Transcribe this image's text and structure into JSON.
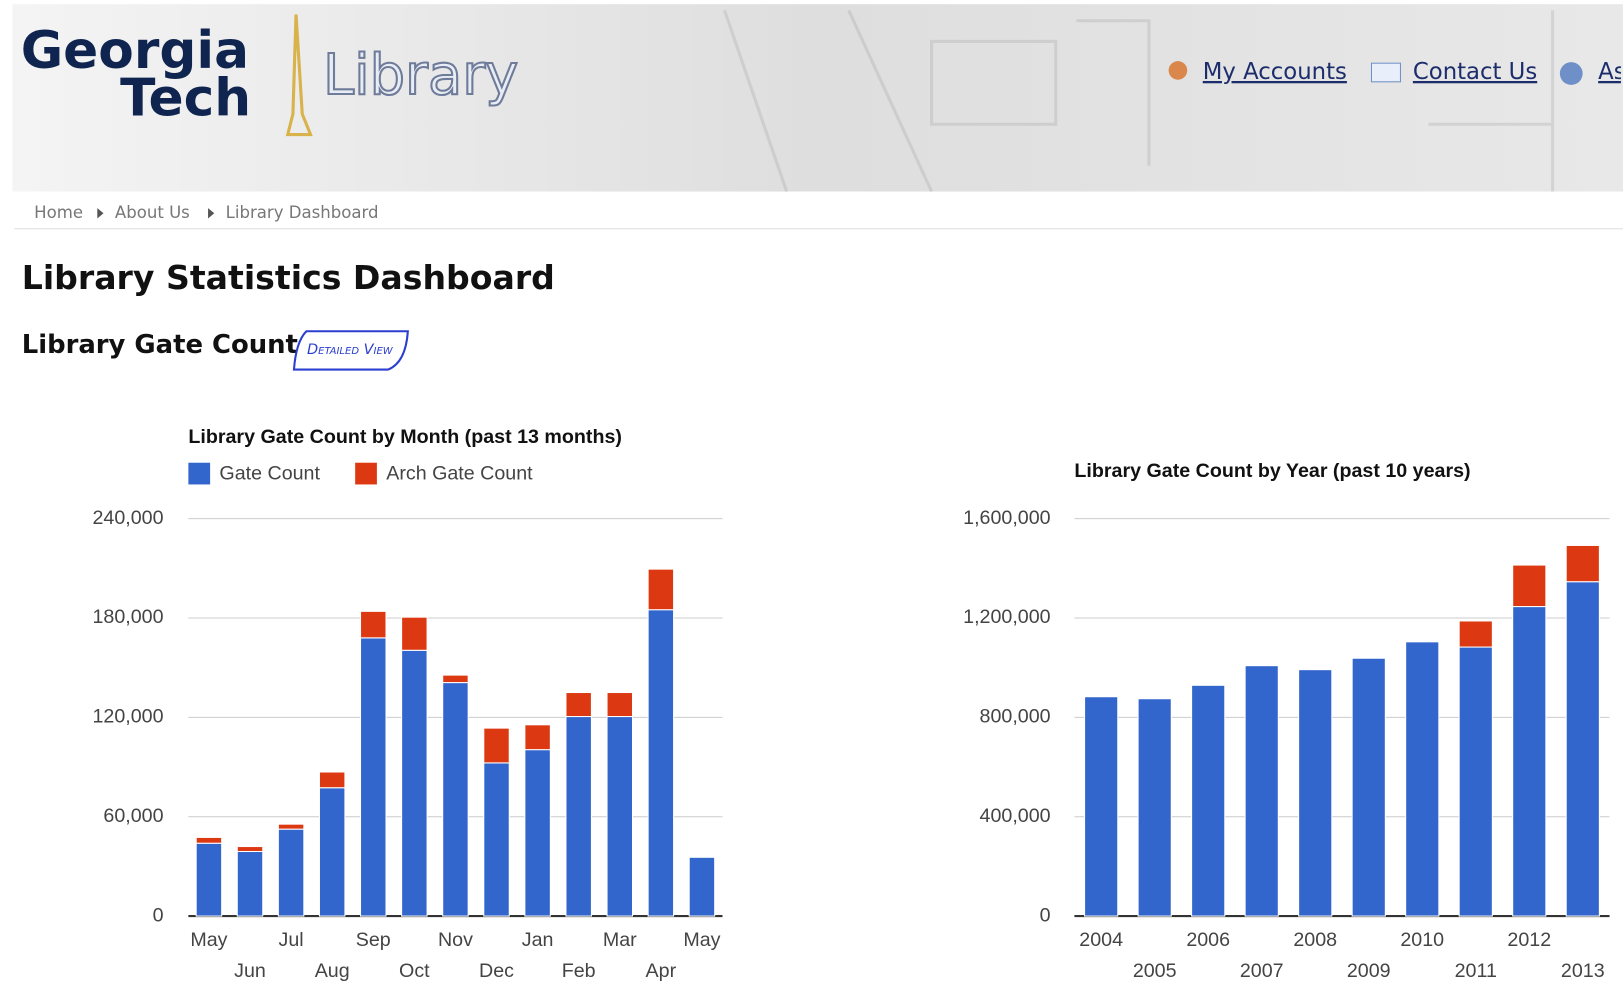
{
  "header": {
    "logo": [
      "Georgia",
      "Tech"
    ],
    "site": "Library",
    "links": [
      "My Accounts",
      "Contact Us",
      "As"
    ]
  },
  "breadcrumb": [
    "Home",
    "About Us",
    "Library Dashboard"
  ],
  "page_title": "Library Statistics Dashboard",
  "section_title": "Library Gate Count",
  "button": "Detailed View",
  "chart_data": [
    {
      "type": "bar",
      "stacked": true,
      "title": "Library Gate Count by Month (past 13 months)",
      "legend": "top",
      "categories": [
        "May",
        "Jun",
        "Jul",
        "Aug",
        "Sep",
        "Oct",
        "Nov",
        "Dec",
        "Jan",
        "Feb",
        "Mar",
        "Apr",
        "May"
      ],
      "series": [
        {
          "name": "Gate Count",
          "color": "#3366cc",
          "values": [
            44000,
            39000,
            52500,
            77500,
            168000,
            160500,
            141000,
            92500,
            100500,
            120500,
            120500,
            185000,
            35500
          ]
        },
        {
          "name": "Arch Gate Count",
          "color": "#dc3912",
          "values": [
            3500,
            3000,
            3000,
            9500,
            16000,
            20000,
            4500,
            21000,
            15000,
            14500,
            14500,
            24500,
            0
          ]
        }
      ],
      "ylim": [
        0,
        240000
      ],
      "yticks": [
        0,
        {
          "value": 60000,
          "label": "60,000"
        },
        {
          "value": 120000,
          "label": "120,000"
        },
        {
          "value": 180000,
          "label": "180,000"
        },
        {
          "value": 240000,
          "label": "240,000"
        }
      ],
      "grid": true
    },
    {
      "type": "bar",
      "stacked": true,
      "title": "Library Gate Count by Year (past 10 years)",
      "categories": [
        "2004",
        "2005",
        "2006",
        "2007",
        "2008",
        "2009",
        "2010",
        "2011",
        "2012",
        "2013"
      ],
      "series": [
        {
          "color": "#3366cc",
          "values": [
            883000,
            875000,
            929000,
            1008000,
            992000,
            1038000,
            1104000,
            1083000,
            1246000,
            1346000
          ]
        },
        {
          "color": "#dc3912",
          "values": [
            0,
            0,
            0,
            0,
            0,
            0,
            0,
            105000,
            167000,
            146000
          ]
        }
      ],
      "ylim": [
        0,
        1600000
      ],
      "yticks": [
        0,
        {
          "value": 400000,
          "label": "400,000"
        },
        {
          "value": 800000,
          "label": "800,000"
        },
        {
          "value": 1200000,
          "label": "1,200,000"
        },
        {
          "value": 1600000,
          "label": "1,600,000"
        }
      ],
      "grid": true
    }
  ]
}
